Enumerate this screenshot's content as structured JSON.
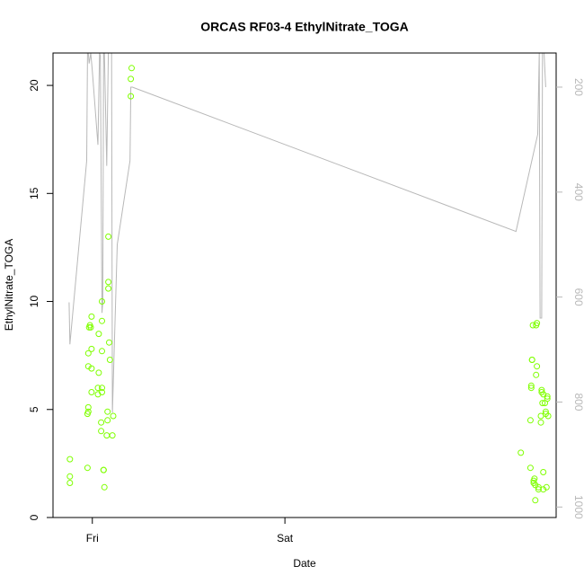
{
  "chart_data": {
    "type": "scatter",
    "title": "ORCAS RF03-4 EthylNitrate_TOGA",
    "xlabel": "Date",
    "ylabel": "EthylNitrate_TOGA",
    "x_unit": "hours since Thu 00:00",
    "xlim": [
      19.1,
      81.8
    ],
    "ylim": [
      0,
      21.5
    ],
    "x_ticks": [
      {
        "label": "Fri",
        "value": 24
      },
      {
        "label": "Sat",
        "value": 48
      }
    ],
    "y_ticks": [
      0,
      5,
      10,
      15,
      20
    ],
    "right_axis": {
      "ticks": [
        200,
        400,
        600,
        800,
        1000
      ],
      "lim_top": 135,
      "lim_bottom": 1020,
      "reversed": true,
      "color": "#b8b8b8"
    },
    "grid": false,
    "colors": {
      "points": "#7fff00",
      "line": "#b8b8b8"
    },
    "series": [
      {
        "kind": "points",
        "points": [
          [
            21.2,
            2.7
          ],
          [
            21.2,
            1.9
          ],
          [
            21.2,
            1.6
          ],
          [
            23.4,
            2.3
          ],
          [
            23.4,
            4.8
          ],
          [
            23.5,
            4.9
          ],
          [
            23.5,
            5.1
          ],
          [
            23.5,
            7.0
          ],
          [
            23.5,
            7.6
          ],
          [
            23.6,
            8.8
          ],
          [
            23.7,
            8.9
          ],
          [
            23.8,
            8.8
          ],
          [
            23.9,
            9.3
          ],
          [
            23.9,
            6.9
          ],
          [
            23.9,
            7.8
          ],
          [
            23.9,
            5.8
          ],
          [
            24.7,
            5.7
          ],
          [
            24.7,
            6.0
          ],
          [
            24.8,
            6.7
          ],
          [
            24.8,
            8.5
          ],
          [
            25.1,
            4.0
          ],
          [
            25.1,
            4.4
          ],
          [
            25.2,
            7.7
          ],
          [
            25.2,
            9.1
          ],
          [
            25.2,
            10.0
          ],
          [
            25.2,
            5.8
          ],
          [
            25.2,
            6.0
          ],
          [
            25.4,
            2.2
          ],
          [
            25.4,
            2.2
          ],
          [
            25.5,
            1.4
          ],
          [
            25.8,
            3.8
          ],
          [
            25.9,
            4.5
          ],
          [
            25.9,
            4.9
          ],
          [
            26.0,
            10.9
          ],
          [
            26.0,
            10.6
          ],
          [
            26.0,
            13.0
          ],
          [
            26.1,
            8.1
          ],
          [
            26.2,
            7.3
          ],
          [
            26.5,
            3.8
          ],
          [
            26.6,
            4.7
          ],
          [
            28.8,
            19.5
          ],
          [
            28.8,
            20.3
          ],
          [
            28.9,
            20.8
          ],
          [
            77.4,
            3.0
          ],
          [
            78.6,
            2.3
          ],
          [
            78.6,
            4.5
          ],
          [
            78.7,
            6.1
          ],
          [
            78.7,
            6.0
          ],
          [
            78.8,
            7.3
          ],
          [
            78.8,
            7.3
          ],
          [
            78.9,
            8.9
          ],
          [
            79.0,
            1.7
          ],
          [
            79.0,
            1.6
          ],
          [
            79.1,
            1.8
          ],
          [
            79.2,
            1.5
          ],
          [
            79.2,
            0.8
          ],
          [
            79.3,
            6.6
          ],
          [
            79.3,
            8.9
          ],
          [
            79.4,
            9.0
          ],
          [
            79.4,
            7.0
          ],
          [
            79.6,
            1.4
          ],
          [
            79.6,
            1.3
          ],
          [
            79.9,
            4.4
          ],
          [
            79.9,
            4.7
          ],
          [
            80.0,
            5.8
          ],
          [
            80.0,
            5.9
          ],
          [
            80.1,
            5.3
          ],
          [
            80.2,
            5.7
          ],
          [
            80.2,
            2.1
          ],
          [
            80.2,
            1.3
          ],
          [
            80.4,
            5.3
          ],
          [
            80.5,
            4.8
          ],
          [
            80.5,
            4.9
          ],
          [
            80.6,
            1.4
          ],
          [
            80.7,
            5.5
          ],
          [
            80.7,
            5.6
          ],
          [
            80.8,
            4.7
          ]
        ]
      },
      {
        "kind": "line",
        "axis": "right",
        "points": [
          [
            21.1,
            610
          ],
          [
            21.2,
            690
          ],
          [
            23.3,
            340
          ],
          [
            23.4,
            135
          ],
          [
            23.5,
            135
          ],
          [
            23.6,
            155
          ],
          [
            23.8,
            135
          ],
          [
            24.0,
            170
          ],
          [
            24.6,
            290
          ],
          [
            24.7,
            310
          ],
          [
            24.9,
            135
          ],
          [
            25.0,
            140
          ],
          [
            25.2,
            630
          ],
          [
            25.3,
            610
          ],
          [
            25.4,
            135
          ],
          [
            25.5,
            135
          ],
          [
            25.8,
            350
          ],
          [
            26.0,
            135
          ],
          [
            26.2,
            135
          ],
          [
            26.4,
            135
          ],
          [
            26.5,
            820
          ],
          [
            27.1,
            500
          ],
          [
            28.7,
            340
          ],
          [
            28.8,
            200
          ],
          [
            29.0,
            200
          ],
          [
            76.8,
            475
          ],
          [
            79.5,
            290
          ],
          [
            79.7,
            135
          ],
          [
            79.8,
            640
          ],
          [
            80.0,
            640
          ],
          [
            80.1,
            135
          ],
          [
            80.3,
            135
          ],
          [
            80.4,
            170
          ],
          [
            80.5,
            200
          ]
        ]
      }
    ]
  }
}
